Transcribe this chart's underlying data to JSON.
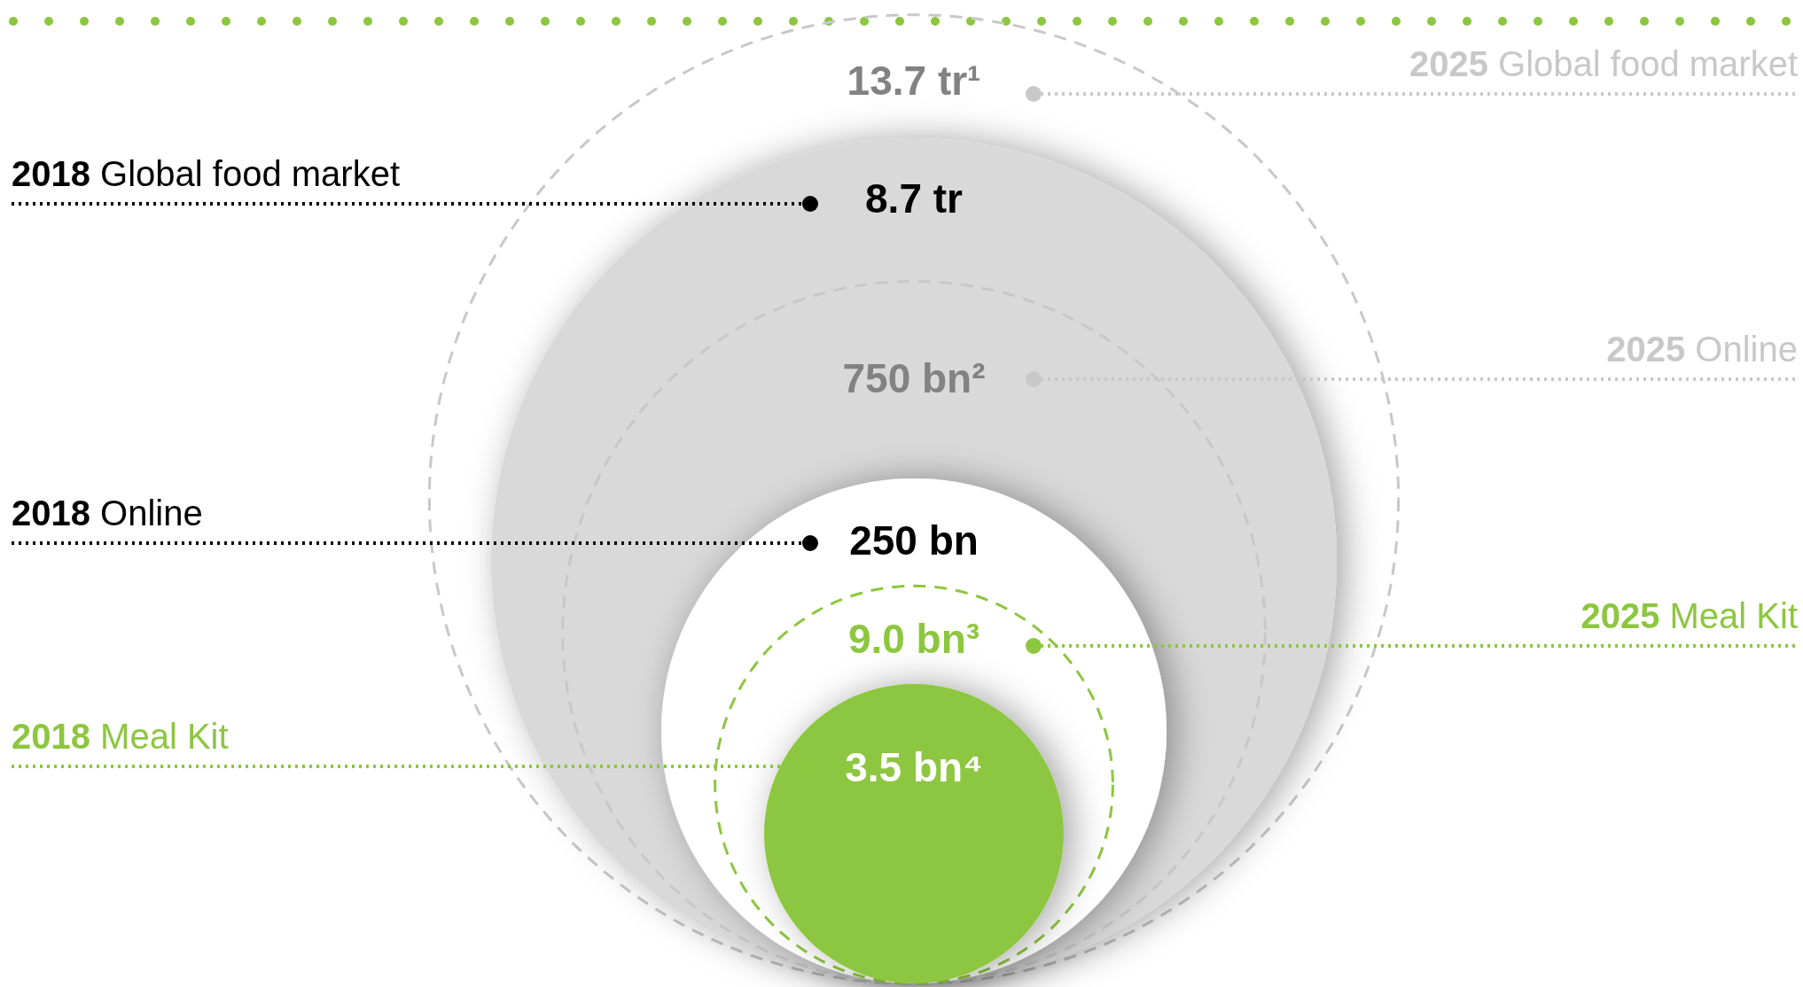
{
  "chart_data": {
    "type": "other",
    "categories": [
      "Global food market",
      "Online",
      "Meal Kit"
    ],
    "series": [
      {
        "name": "2018",
        "colors": [
          "#d9d9d9",
          "#ffffff",
          "#8dc63f"
        ],
        "values": [
          8.7,
          250,
          3.5
        ],
        "value_labels": [
          "8.7 tr",
          "250 bn",
          "3.5 bn⁴"
        ]
      },
      {
        "name": "2025",
        "line_style": "dashed",
        "colors": [
          "#c8c8c8",
          "#c8c8c8",
          "#8dc63f"
        ],
        "values": [
          13.7,
          750,
          9.0
        ],
        "value_labels": [
          "13.7 tr¹",
          "750 bn²",
          "9.0 bn³"
        ]
      }
    ]
  }
}
